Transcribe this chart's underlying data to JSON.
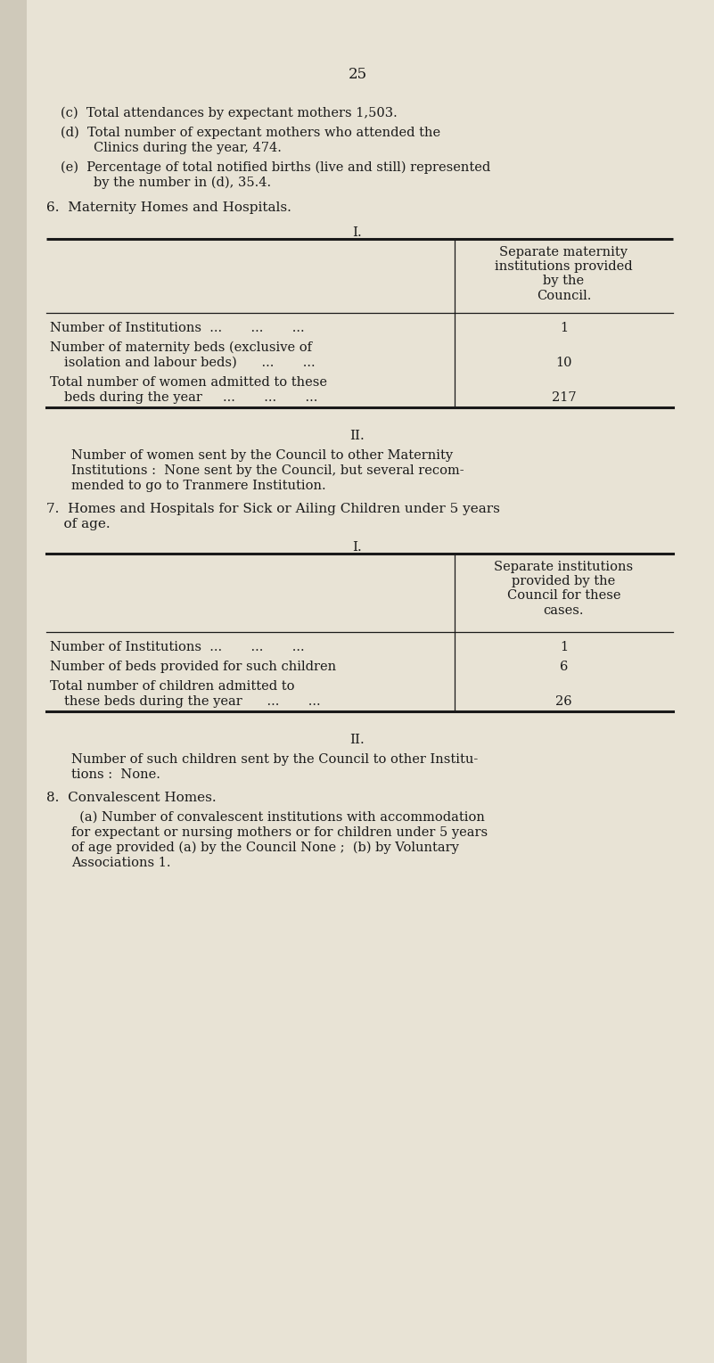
{
  "bg_color": "#e8e3d5",
  "bg_color_left": "#c8c0a8",
  "text_color": "#1a1a1a",
  "page_number": "25",
  "section6_title": "6.  Maternity Homes and Hospitals.",
  "table1_title": "I.",
  "table1_col_header": "Separate maternity\ninstitutions provided\nby the\nCouncil.",
  "table1_rows": [
    [
      "Number of Institutions  ...       ...       ...",
      "1"
    ],
    [
      "Number of maternity beds (exclusive of\n  isolation and labour beds)      ...       ...",
      "10"
    ],
    [
      "Total number of women admitted to these\n  beds during the year     ...       ...       ...",
      "217"
    ]
  ],
  "section6_II_title": "II.",
  "section6_II_text": "Number of women sent by the Council to other Maternity\nInstitutions :  None sent by the Council, but several recom-\nmended to go to Tranmere Institution.",
  "section7_title_l1": "7.  Homes and Hospitals for Sick or Ailing Children under 5 years",
  "section7_title_l2": "    of age.",
  "table2_title": "I.",
  "table2_col_header": "Separate institutions\nprovided by the\nCouncil for these\ncases.",
  "table2_rows": [
    [
      "Number of Institutions  ...       ...       ...",
      "1"
    ],
    [
      "Number of beds provided for such children",
      "6"
    ],
    [
      "Total number of children admitted to\n  these beds during the year      ...       ...",
      "26"
    ]
  ],
  "section7_II_title": "II.",
  "section7_II_text": "Number of such children sent by the Council to other Institu-\ntions :  None.",
  "section8_title": "8.  Convalescent Homes.",
  "section8_text_l1": "  (a) Number of convalescent institutions with accommodation",
  "section8_text_l2": "for expectant or nursing mothers or for children under 5 years",
  "section8_text_l3": "of age provided (a) by the Council None ;  (b) by Voluntary",
  "section8_text_l4": "Associations 1.",
  "intro_c": "(c)  Total attendances by expectant mothers 1,503.",
  "intro_d1": "(d)  Total number of expectant mothers who attended the",
  "intro_d2": "        Clinics during the year, 474.",
  "intro_e1": "(e)  Percentage of total notified births (live and still) represented",
  "intro_e2": "        by the number in (d), 35.4."
}
